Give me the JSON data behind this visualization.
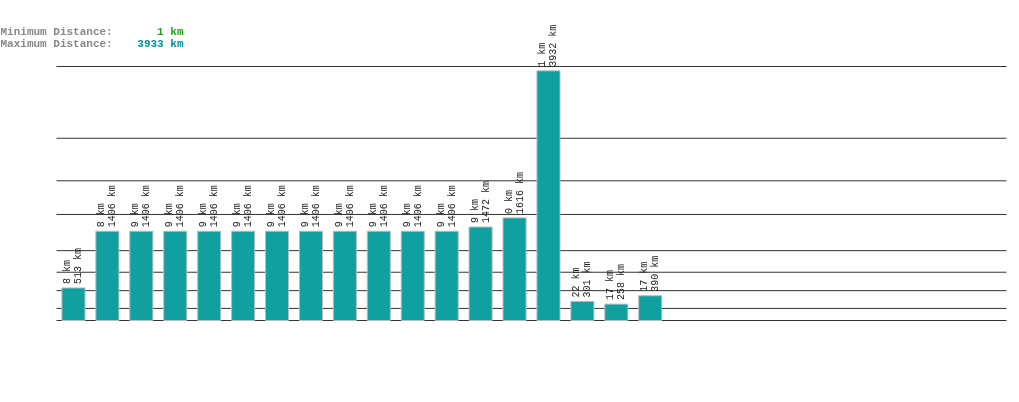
{
  "chart_data": {
    "type": "bar",
    "categories": [
      null,
      null,
      null,
      null,
      null,
      null,
      null,
      null,
      null,
      null,
      null,
      null,
      null,
      null,
      null,
      null,
      null,
      null
    ],
    "values": [
      513,
      1406,
      1406,
      1406,
      1406,
      1406,
      1406,
      1406,
      1406,
      1406,
      1406,
      1406,
      1472,
      1616,
      3932,
      301,
      258,
      390
    ],
    "ylim": [
      0,
      4000
    ],
    "tick_labels": false,
    "color": "#11a0a0",
    "value_labels": [
      "8 km\n513 km",
      "8 km\n1406 km",
      "9 km\n1406 km",
      "9 km\n1406 km",
      "9 km\n1406 km",
      "9 km\n1406 km",
      "9 km\n1406 km",
      "9 km\n1406 km",
      "9 km\n1406 km",
      "9 km\n1406 km",
      "9 km\n1406 km",
      "9 km\n1406 km",
      "9 km\n1472 km",
      "0 km\n1616 km",
      "1 km\n3932 km",
      "22 km\n301 km",
      "17 km\n258 km",
      "17 km\n390 km"
    ],
    "ref_lines": [
      {
        "axis": "y",
        "value": 4000
      },
      {
        "axis": "y",
        "value": 2870
      },
      {
        "axis": "y",
        "value": 2200
      },
      {
        "axis": "y",
        "value": 1670
      },
      {
        "axis": "y",
        "value": 1100
      },
      {
        "axis": "y",
        "value": 760
      },
      {
        "axis": "y",
        "value": 470
      },
      {
        "axis": "y",
        "value": 190
      },
      {
        "axis": "y",
        "value": 0
      }
    ],
    "annotations": [
      "Minimum Distance:",
      "1 km",
      "Maximum Distance:",
      "3933 km"
    ]
  }
}
